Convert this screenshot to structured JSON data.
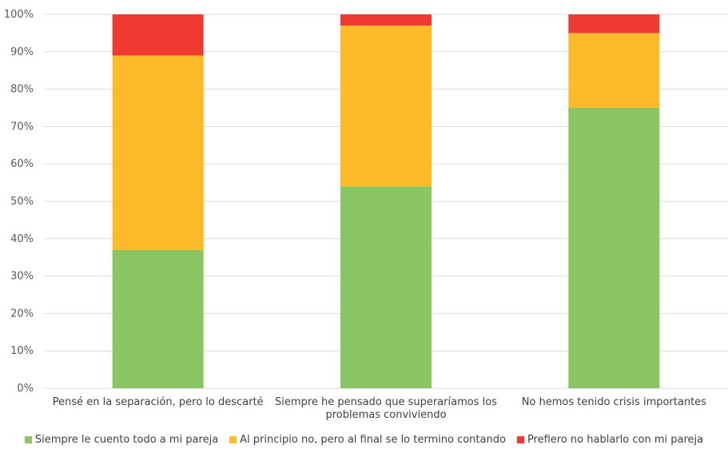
{
  "chart_data": {
    "type": "bar",
    "stacked": true,
    "categories": [
      [
        "Pensé en la separación, pero lo descarté"
      ],
      [
        "Siempre he pensado que superaríamos los",
        "problemas conviviendo"
      ],
      [
        "No hemos tenido crisis importantes"
      ]
    ],
    "series": [
      {
        "name": "Siempre le cuento todo a mi pareja",
        "color": "#8AC563",
        "values": [
          37,
          54,
          75
        ]
      },
      {
        "name": "Al principio no, pero al final se lo termino contando",
        "color": "#FDBB2A",
        "values": [
          52,
          43,
          20
        ]
      },
      {
        "name": "Prefiero no hablarlo con mi pareja",
        "color": "#EF3A31",
        "values": [
          11,
          3,
          5
        ]
      }
    ],
    "yticks": [
      "0%",
      "10%",
      "20%",
      "30%",
      "40%",
      "50%",
      "60%",
      "70%",
      "80%",
      "90%",
      "100%"
    ],
    "ylim": [
      0,
      100
    ],
    "legend_position": "bottom",
    "grid": true
  }
}
